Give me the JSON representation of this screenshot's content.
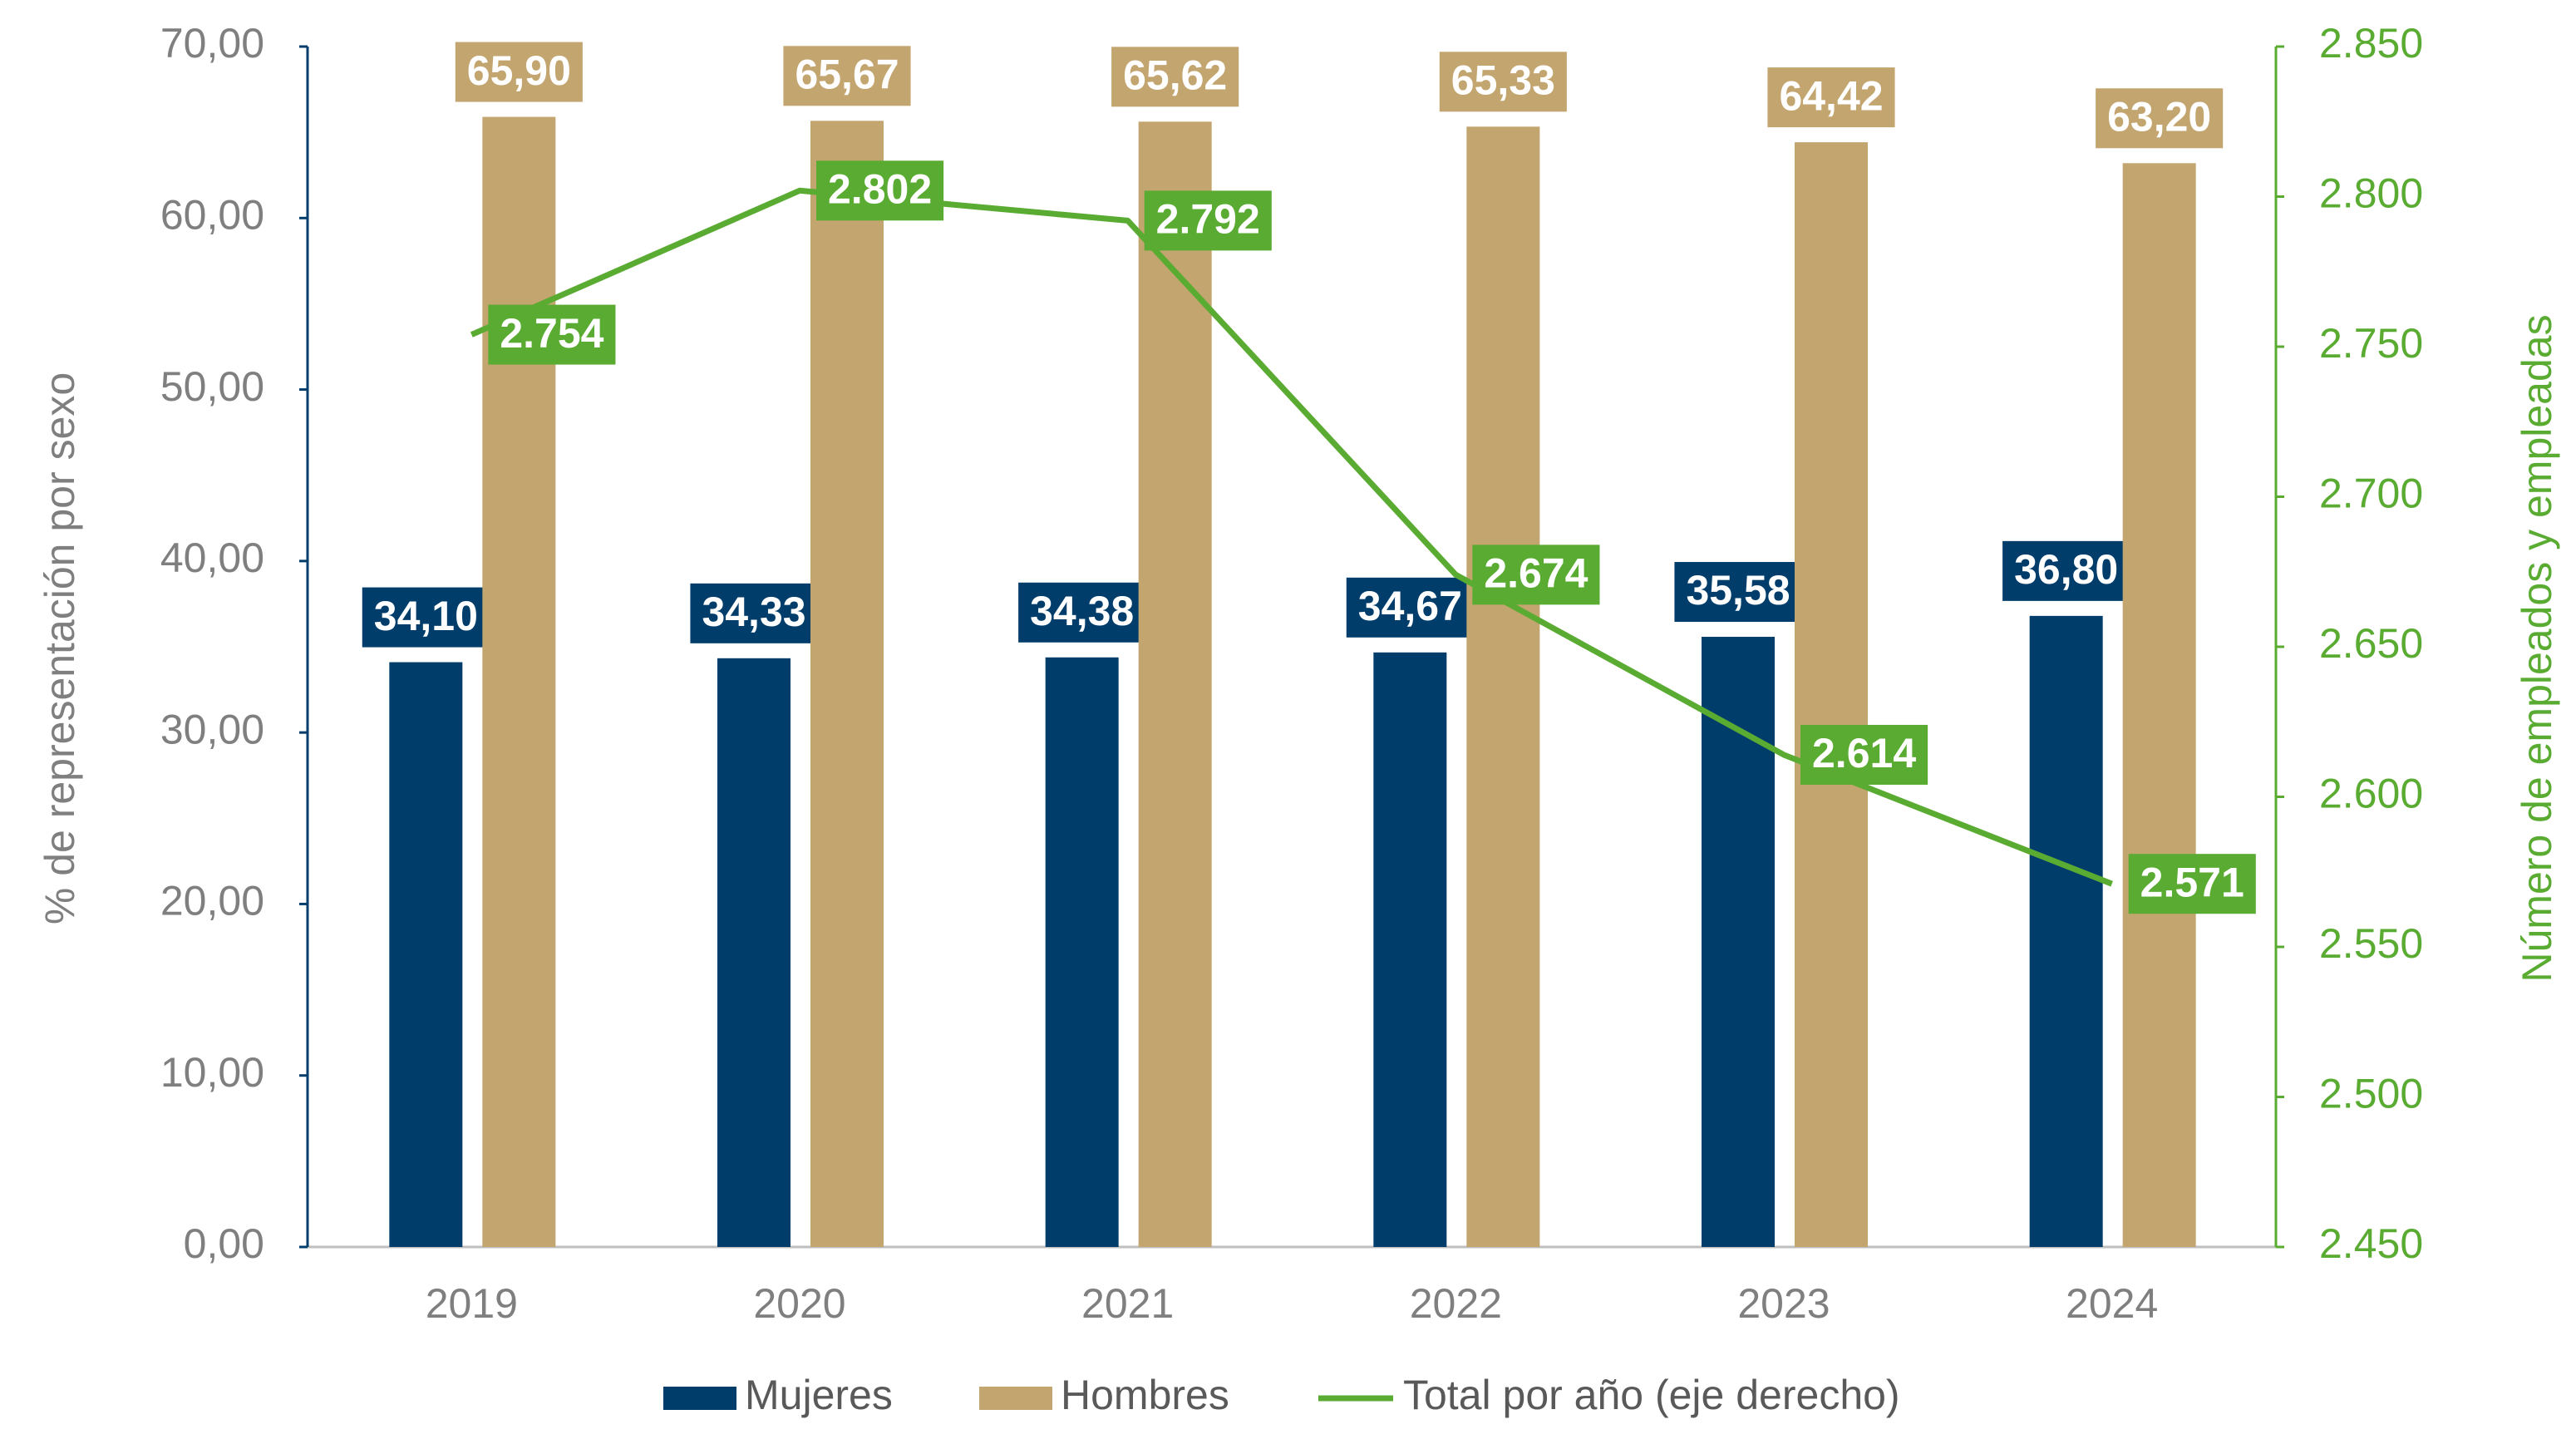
{
  "chart_data": {
    "type": "bar-line",
    "categories": [
      "2019",
      "2020",
      "2021",
      "2022",
      "2023",
      "2024"
    ],
    "series": [
      {
        "name": "Mujeres",
        "color": "#003d6b",
        "values": [
          34.1,
          34.33,
          34.38,
          34.67,
          35.58,
          36.8
        ],
        "value_labels": [
          "34,10",
          "34,33",
          "34,38",
          "34,67",
          "35,58",
          "36,80"
        ]
      },
      {
        "name": "Hombres",
        "color": "#c3a56f",
        "values": [
          65.9,
          65.67,
          65.62,
          65.33,
          64.42,
          63.2
        ],
        "value_labels": [
          "65,90",
          "65,67",
          "65,62",
          "65,33",
          "64,42",
          "63,20"
        ]
      },
      {
        "name": "Total por año (eje derecho)",
        "color": "#5aab32",
        "axis": "y2",
        "type": "line",
        "values": [
          2754,
          2802,
          2792,
          2674,
          2614,
          2571
        ],
        "value_labels": [
          "2.754",
          "2.802",
          "2.792",
          "2.674",
          "2.614",
          "2.571"
        ]
      }
    ],
    "ylabel": "% de representación por sexo",
    "y2label": "Número de empleados y empleadas",
    "ylim": [
      0,
      70
    ],
    "yticks": [
      {
        "value": 0,
        "label": "0,00"
      },
      {
        "value": 10,
        "label": "10,00"
      },
      {
        "value": 20,
        "label": "20,00"
      },
      {
        "value": 30,
        "label": "30,00"
      },
      {
        "value": 40,
        "label": "40,00"
      },
      {
        "value": 50,
        "label": "50,00"
      },
      {
        "value": 60,
        "label": "60,00"
      },
      {
        "value": 70,
        "label": "70,00"
      }
    ],
    "y2lim": [
      2450,
      2850
    ],
    "y2ticks": [
      {
        "value": 2450,
        "label": "2.450"
      },
      {
        "value": 2500,
        "label": "2.500"
      },
      {
        "value": 2550,
        "label": "2.550"
      },
      {
        "value": 2600,
        "label": "2.600"
      },
      {
        "value": 2650,
        "label": "2.650"
      },
      {
        "value": 2700,
        "label": "2.700"
      },
      {
        "value": 2750,
        "label": "2.750"
      },
      {
        "value": 2800,
        "label": "2.800"
      },
      {
        "value": 2850,
        "label": "2.850"
      }
    ],
    "legend": "bottom"
  }
}
